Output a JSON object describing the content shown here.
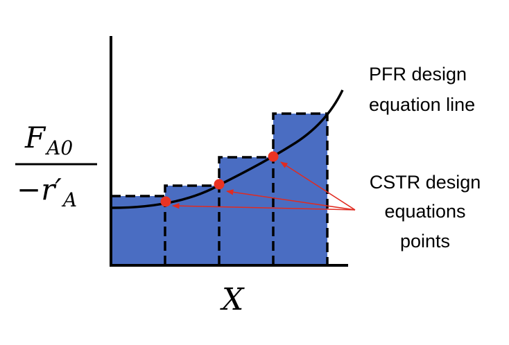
{
  "colors": {
    "bar_fill": "#4a6dc2",
    "point": "#ea3323",
    "arrow": "#e02b20",
    "axis": "#000000"
  },
  "y_label": {
    "numerator": {
      "symbol": "F",
      "subscript": "A0"
    },
    "denominator": {
      "prefix": "−r′",
      "subscript": "A"
    }
  },
  "x_label": "X",
  "pfr_label": {
    "line1": "PFR design",
    "line2": "equation line"
  },
  "cstr_label": {
    "line1": "CSTR design",
    "line2": "equations",
    "line3": "points"
  },
  "icons": {
    "arrowhead": "arrow-icon"
  }
}
